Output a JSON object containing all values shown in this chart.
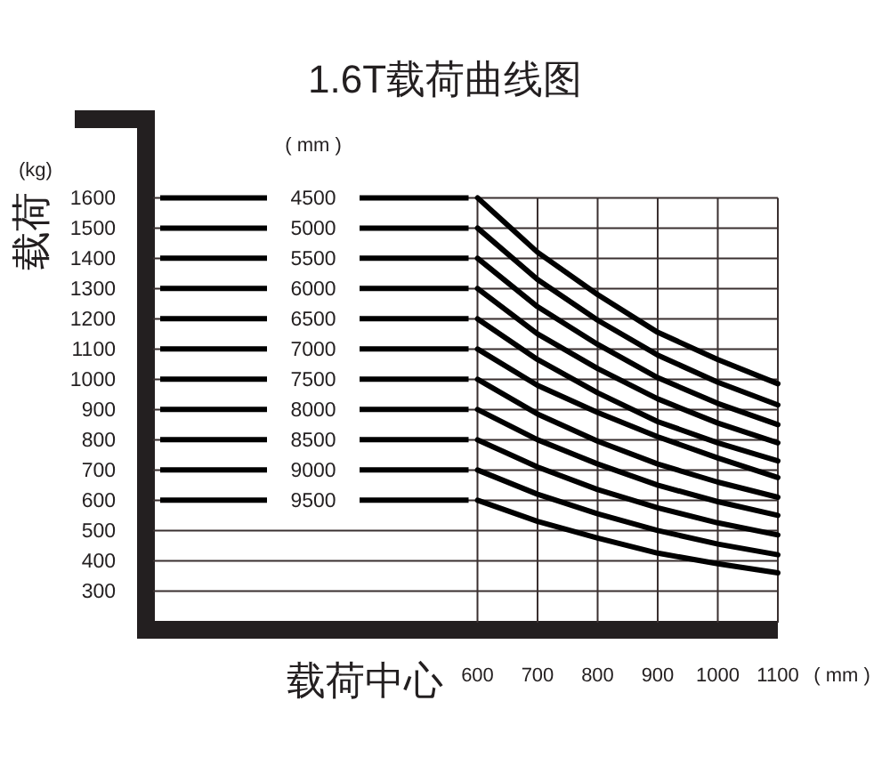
{
  "chart_data": {
    "type": "line",
    "title": "1.6T载荷曲线图",
    "xlabel": "载荷中心",
    "ylabel": "载荷",
    "legend_title": "( mm )",
    "annotations": [
      "(kg)",
      "( mm )"
    ],
    "x": [
      600,
      700,
      800,
      900,
      1000,
      1100
    ],
    "xlim": [
      60,
      1100
    ],
    "xticks": [
      600,
      700,
      800,
      900,
      1000,
      1100
    ],
    "ylim": [
      195,
      1860
    ],
    "yticks": [
      300,
      400,
      500,
      600,
      700,
      800,
      900,
      1000,
      1100,
      1200,
      1300,
      1400,
      1500,
      1600
    ],
    "grid": true,
    "legend": false,
    "marker": "none",
    "line_style": "solid",
    "series": [
      {
        "name": "4500",
        "color": "#000000",
        "values": [
          1600,
          1420,
          1280,
          1155,
          1065,
          985
        ]
      },
      {
        "name": "5000",
        "color": "#000000",
        "values": [
          1500,
          1330,
          1195,
          1080,
          990,
          915
        ]
      },
      {
        "name": "5500",
        "color": "#000000",
        "values": [
          1400,
          1240,
          1115,
          1005,
          920,
          850
        ]
      },
      {
        "name": "6000",
        "color": "#000000",
        "values": [
          1300,
          1150,
          1035,
          935,
          855,
          790
        ]
      },
      {
        "name": "6500",
        "color": "#000000",
        "values": [
          1200,
          1065,
          955,
          860,
          790,
          730
        ]
      },
      {
        "name": "7000",
        "color": "#000000",
        "values": [
          1100,
          980,
          890,
          810,
          740,
          675
        ]
      },
      {
        "name": "7500",
        "color": "#000000",
        "values": [
          1000,
          885,
          795,
          720,
          660,
          610
        ]
      },
      {
        "name": "8000",
        "color": "#000000",
        "values": [
          900,
          800,
          720,
          650,
          595,
          550
        ]
      },
      {
        "name": "8500",
        "color": "#000000",
        "values": [
          800,
          710,
          635,
          575,
          525,
          485
        ]
      },
      {
        "name": "9000",
        "color": "#000000",
        "values": [
          700,
          620,
          555,
          500,
          455,
          420
        ]
      },
      {
        "name": "9500",
        "color": "#000000",
        "values": [
          600,
          530,
          475,
          425,
          390,
          360
        ]
      }
    ]
  }
}
